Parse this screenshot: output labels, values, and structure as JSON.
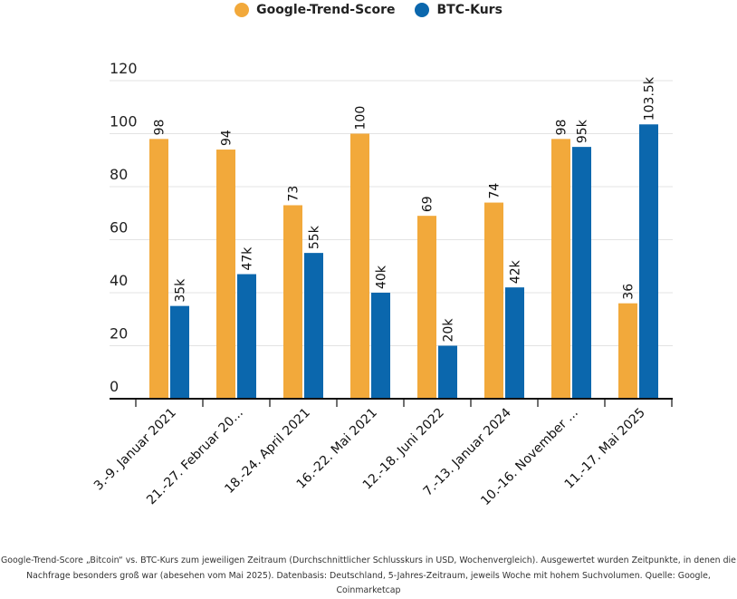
{
  "legend": [
    {
      "label": "Google-Trend-Score",
      "color": "#F2A93B"
    },
    {
      "label": "BTC-Kurs",
      "color": "#0B67AD"
    }
  ],
  "chart_data": {
    "type": "bar",
    "title": "",
    "xlabel": "",
    "ylabel": "",
    "ylim": [
      0,
      120
    ],
    "yticks": [
      0,
      20,
      40,
      60,
      80,
      100,
      120
    ],
    "ytick_labels": [
      "0",
      "20",
      "40",
      "60",
      "80",
      "100",
      "120"
    ],
    "grid": true,
    "legend_position": "top-center",
    "categories": [
      "3.-9. Januar 2021",
      "21.-27. Februar 20...",
      "18.-24. April 2021",
      "16.-22. Mai 2021",
      "12.-18. Juni 2022",
      "7.-13. Januar 2024",
      "10.-16. November ...",
      "11.-17. Mai 2025"
    ],
    "series": [
      {
        "name": "Google-Trend-Score",
        "color": "#F2A93B",
        "values": [
          98,
          94,
          73,
          100,
          69,
          74,
          98,
          36
        ],
        "labels": [
          "98",
          "94",
          "73",
          "100",
          "69",
          "74",
          "98",
          "36"
        ]
      },
      {
        "name": "BTC-Kurs",
        "color": "#0B67AD",
        "values": [
          35,
          47,
          55,
          40,
          20,
          42,
          95,
          103.5
        ],
        "labels": [
          "35k",
          "47k",
          "55k",
          "40k",
          "20k",
          "42k",
          "95k",
          "103.5k"
        ]
      }
    ]
  },
  "footnote": {
    "line1": "Google-Trend-Score „Bitcoin“ vs. BTC-Kurs zum jeweiligen Zeitraum (Durchschnittlicher Schlusskurs in USD, Wochenvergleich). Ausgewertet wurden Zeitpunkte, in denen die",
    "line2": "Nachfrage besonders groß war (abesehen vom Mai 2025). Datenbasis: Deutschland, 5-Jahres-Zeitraum, jeweils Woche mit hohem Suchvolumen. Quelle: Google,",
    "line3": "Coinmarketcap"
  }
}
